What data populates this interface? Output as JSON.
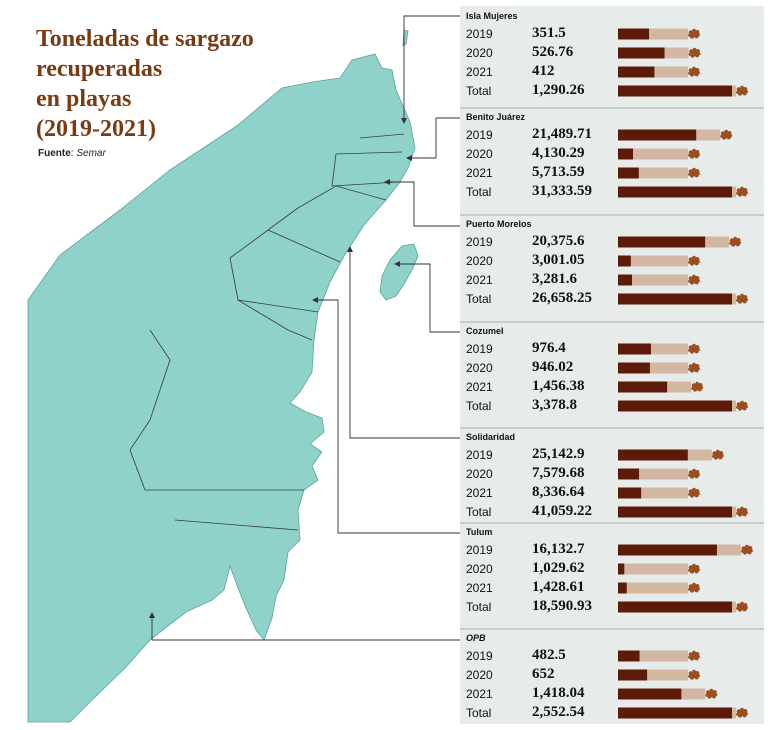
{
  "title_lines": [
    "Toneladas de sargazo",
    "recuperadas",
    "en playas",
    "(2019-2021)"
  ],
  "source": {
    "label": "Fuente",
    "name": "Semar"
  },
  "colors": {
    "bar": "#5c1a09",
    "bar_track": "#d2b8a3",
    "sargassum": "#9b4e22",
    "land": "#8ed2ca",
    "panel": "#e7ecea",
    "title": "#7a3a12"
  },
  "chart_data": {
    "type": "bar",
    "title": "Toneladas de sargazo recuperadas en playas (2019-2021)",
    "orientation": "horizontal",
    "scale": "per-municipality",
    "categories": [
      "2019",
      "2020",
      "2021",
      "Total"
    ],
    "series": [
      {
        "name": "Isla Mujeres",
        "year_labels": [
          "2019",
          "2020",
          "2021",
          "Total"
        ],
        "values": [
          351.5,
          526.76,
          412,
          1290.26
        ],
        "labels": [
          "351.5",
          "526.76",
          "412",
          "1,290.26"
        ]
      },
      {
        "name": "Benito Juárez",
        "year_labels": [
          "2019",
          "2020",
          "2021",
          "Total"
        ],
        "values": [
          21489.71,
          4130.29,
          5713.59,
          31333.59
        ],
        "labels": [
          "21,489.71",
          "4,130.29",
          "5,713.59",
          "31,333.59"
        ]
      },
      {
        "name": "Puerto Morelos",
        "year_labels": [
          "2019",
          "2020",
          "2021",
          "Total"
        ],
        "values": [
          20375.6,
          3001.05,
          3281.6,
          26658.25
        ],
        "labels": [
          "20,375.6",
          "3,001.05",
          "3,281.6",
          "26,658.25"
        ]
      },
      {
        "name": "Cozumel",
        "year_labels": [
          "2019",
          "2020",
          "2021",
          "Total"
        ],
        "values": [
          976.4,
          946.02,
          1456.38,
          3378.8
        ],
        "labels": [
          "976.4",
          "946.02",
          "1,456.38",
          "3,378.8"
        ]
      },
      {
        "name": "Solidaridad",
        "year_labels": [
          "2019",
          "2020",
          "2021",
          "Total"
        ],
        "values": [
          25142.9,
          7579.68,
          8336.64,
          41059.22
        ],
        "labels": [
          "25,142.9",
          "7,579.68",
          "8,336.64",
          "41,059.22"
        ]
      },
      {
        "name": "Tulum",
        "year_labels": [
          "2019",
          "2020",
          "2021",
          "Total"
        ],
        "values": [
          16132.7,
          1029.62,
          1428.61,
          18590.93
        ],
        "labels": [
          "16,132.7",
          "1,029.62",
          "1,428.61",
          "18,590.93"
        ]
      },
      {
        "name": "OPB",
        "year_labels": [
          "2019",
          "2020",
          "2021",
          "Total"
        ],
        "values": [
          482.5,
          652,
          1418.04,
          2552.54
        ],
        "labels": [
          "482.5",
          "652",
          "1,418.04",
          "2,552.54"
        ]
      }
    ]
  }
}
